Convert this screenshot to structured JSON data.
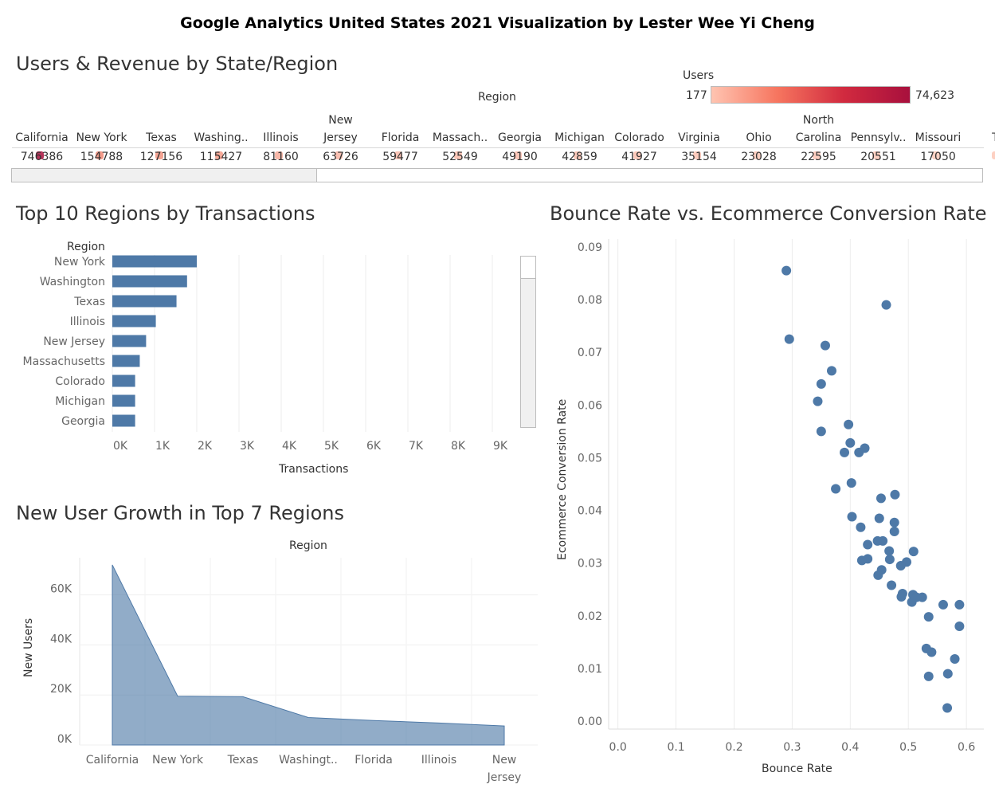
{
  "dashboard": {
    "title": "Google Analytics United States 2021 Visualization by Lester Wee Yi Cheng"
  },
  "map_table": {
    "title": "Users & Revenue by State/Region",
    "header": "Region",
    "legend": {
      "title": "Users",
      "min": "177",
      "max": "74,623",
      "colors": [
        "#ffc4b1",
        "#f6755f",
        "#d12a3f",
        "#a8103d"
      ]
    },
    "columns": [
      {
        "name": [
          "California"
        ],
        "value": "746386",
        "shade": "#a8103d"
      },
      {
        "name": [
          "New York"
        ],
        "value": "154788",
        "shade": "#f08a76"
      },
      {
        "name": [
          "Texas"
        ],
        "value": "127156",
        "shade": "#f39480"
      },
      {
        "name": [
          "Washing.."
        ],
        "value": "115427",
        "shade": "#f49a86"
      },
      {
        "name": [
          "Illinois"
        ],
        "value": "81160",
        "shade": "#f7ac9a"
      },
      {
        "name": [
          "New",
          "Jersey"
        ],
        "value": "63726",
        "shade": "#f8b4a3"
      },
      {
        "name": [
          "Florida"
        ],
        "value": "59477",
        "shade": "#f9b8a7"
      },
      {
        "name": [
          "Massach.."
        ],
        "value": "52549",
        "shade": "#fabba9"
      },
      {
        "name": [
          "Georgia"
        ],
        "value": "49190",
        "shade": "#fabcab"
      },
      {
        "name": [
          "Michigan"
        ],
        "value": "42859",
        "shade": "#fbbfae"
      },
      {
        "name": [
          "Colorado"
        ],
        "value": "41927",
        "shade": "#fbbfae"
      },
      {
        "name": [
          "Virginia"
        ],
        "value": "35154",
        "shade": "#fcc2b1"
      },
      {
        "name": [
          "Ohio"
        ],
        "value": "23028",
        "shade": "#fdc6b5"
      },
      {
        "name": [
          "North",
          "Carolina"
        ],
        "value": "22595",
        "shade": "#fdc6b5"
      },
      {
        "name": [
          "Pennsylv.."
        ],
        "value": "20551",
        "shade": "#fdc7b6"
      },
      {
        "name": [
          "Missouri"
        ],
        "value": "17050",
        "shade": "#fdc8b7"
      },
      {
        "name": [
          "Te"
        ],
        "value": "",
        "shade": "#fdc8b7"
      }
    ]
  },
  "chart_data": [
    {
      "type": "bar",
      "title": "Top 10 Regions by Transactions",
      "category_header": "Region",
      "xlabel": "Transactions",
      "xlim": [
        0,
        10000
      ],
      "xticks": [
        "0K",
        "1K",
        "2K",
        "3K",
        "4K",
        "5K",
        "6K",
        "7K",
        "8K",
        "9K"
      ],
      "categories": [
        "New York",
        "Washington",
        "Texas",
        "Illinois",
        "New Jersey",
        "Massachusetts",
        "Colorado",
        "Michigan",
        "Georgia"
      ],
      "values": [
        2000,
        1770,
        1520,
        1030,
        800,
        650,
        540,
        540,
        540
      ],
      "color": "#4e79a7"
    },
    {
      "type": "area",
      "title": "New User Growth in Top 7 Regions",
      "category_header": "Region",
      "ylabel": "New Users",
      "ylim": [
        0,
        75000
      ],
      "yticks": [
        "0K",
        "20K",
        "40K",
        "60K"
      ],
      "categories": [
        [
          "California"
        ],
        [
          "New York"
        ],
        [
          "Texas"
        ],
        [
          "Washingt.."
        ],
        [
          "Florida"
        ],
        [
          "Illinois"
        ],
        [
          "New",
          "Jersey"
        ]
      ],
      "values": [
        72000,
        19500,
        19300,
        11000,
        9800,
        8800,
        7600
      ],
      "color": "#4e79a7"
    },
    {
      "type": "scatter",
      "title": "Bounce Rate vs. Ecommerce Conversion Rate",
      "xlabel": "Bounce Rate",
      "ylabel": "Ecommerce Conversion Rate",
      "xlim": [
        -0.016,
        0.63
      ],
      "ylim": [
        -0.0015,
        0.0915
      ],
      "xticks": [
        "0.0",
        "0.1",
        "0.2",
        "0.3",
        "0.4",
        "0.5",
        "0.6"
      ],
      "yticks": [
        "0.00",
        "0.01",
        "0.02",
        "0.03",
        "0.04",
        "0.05",
        "0.06",
        "0.07",
        "0.08",
        "0.09"
      ],
      "color": "#4e79a7",
      "points": [
        [
          0.29,
          0.0855
        ],
        [
          0.462,
          0.079
        ],
        [
          0.295,
          0.0725
        ],
        [
          0.357,
          0.0713
        ],
        [
          0.368,
          0.0665
        ],
        [
          0.35,
          0.064
        ],
        [
          0.344,
          0.0607
        ],
        [
          0.397,
          0.0563
        ],
        [
          0.35,
          0.055
        ],
        [
          0.4,
          0.0528
        ],
        [
          0.425,
          0.0518
        ],
        [
          0.415,
          0.051
        ],
        [
          0.39,
          0.051
        ],
        [
          0.402,
          0.0452
        ],
        [
          0.375,
          0.0441
        ],
        [
          0.477,
          0.043
        ],
        [
          0.453,
          0.0423
        ],
        [
          0.403,
          0.0388
        ],
        [
          0.45,
          0.0385
        ],
        [
          0.476,
          0.0377
        ],
        [
          0.418,
          0.0368
        ],
        [
          0.476,
          0.036
        ],
        [
          0.456,
          0.0342
        ],
        [
          0.447,
          0.0342
        ],
        [
          0.43,
          0.0335
        ],
        [
          0.467,
          0.0323
        ],
        [
          0.509,
          0.0322
        ],
        [
          0.43,
          0.0308
        ],
        [
          0.42,
          0.0305
        ],
        [
          0.468,
          0.0307
        ],
        [
          0.497,
          0.0302
        ],
        [
          0.487,
          0.0295
        ],
        [
          0.454,
          0.0287
        ],
        [
          0.448,
          0.0277
        ],
        [
          0.471,
          0.0258
        ],
        [
          0.49,
          0.0242
        ],
        [
          0.508,
          0.024
        ],
        [
          0.488,
          0.0236
        ],
        [
          0.514,
          0.0235
        ],
        [
          0.524,
          0.0235
        ],
        [
          0.506,
          0.0226
        ],
        [
          0.56,
          0.0221
        ],
        [
          0.588,
          0.0221
        ],
        [
          0.535,
          0.0198
        ],
        [
          0.588,
          0.018
        ],
        [
          0.531,
          0.0138
        ],
        [
          0.54,
          0.0131
        ],
        [
          0.58,
          0.0118
        ],
        [
          0.568,
          0.009
        ],
        [
          0.535,
          0.0085
        ],
        [
          0.567,
          0.0025
        ]
      ]
    }
  ]
}
